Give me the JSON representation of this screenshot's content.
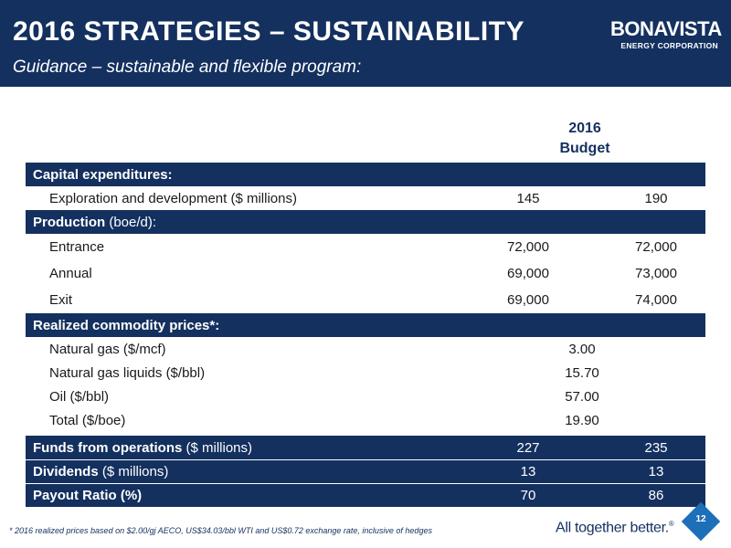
{
  "header": {
    "title": "2016 STRATEGIES – SUSTAINABILITY",
    "subtitle": "Guidance – sustainable and flexible program:",
    "logo_main": "BONAVISTA",
    "logo_sub": "ENERGY CORPORATION"
  },
  "column_header": {
    "line1": "2016",
    "line2": "Budget"
  },
  "table": {
    "capex": {
      "heading": "Capital expenditures:",
      "rows": [
        {
          "label": "Exploration and development ($ millions)",
          "v1": "145",
          "v2": "190"
        }
      ]
    },
    "production": {
      "heading_bold": "Production",
      "heading_plain": " (boe/d):",
      "rows": [
        {
          "label": "Entrance",
          "v1": "72,000",
          "v2": "72,000"
        },
        {
          "label": "Annual",
          "v1": "69,000",
          "v2": "73,000"
        },
        {
          "label": "Exit",
          "v1": "69,000",
          "v2": "74,000"
        }
      ]
    },
    "prices": {
      "heading": "Realized commodity prices*:",
      "rows": [
        {
          "label": "Natural gas ($/mcf)",
          "v": "3.00"
        },
        {
          "label": "Natural gas liquids ($/bbl)",
          "v": "15.70"
        },
        {
          "label": "Oil ($/bbl)",
          "v": "57.00"
        },
        {
          "label": "Total ($/boe)",
          "v": "19.90"
        }
      ]
    },
    "summary": [
      {
        "label_bold": "Funds from operations",
        "label_plain": " ($ millions)",
        "v1": "227",
        "v2": "235"
      },
      {
        "label_bold": "Dividends",
        "label_plain": " ($ millions)",
        "v1": "13",
        "v2": "13"
      },
      {
        "label_bold": "Payout Ratio (%)",
        "label_plain": "",
        "v1": "70",
        "v2": "86"
      }
    ]
  },
  "footer": {
    "footnote": "* 2016 realized prices based on $2.00/gj AECO, US$34.03/bbl WTI and US$0.72 exchange rate, inclusive of hedges",
    "tagline": "All together better.",
    "tagline_mark": "®",
    "page_number": "12"
  },
  "colors": {
    "navy": "#14305f",
    "accent_blue": "#1d6fb8"
  }
}
